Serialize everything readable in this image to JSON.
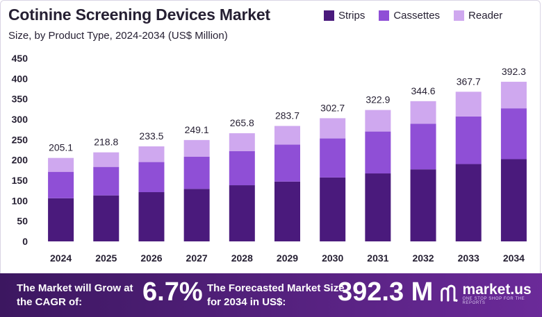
{
  "chart_data": {
    "type": "bar",
    "stacked": true,
    "title": "Cotinine Screening Devices Market",
    "subtitle": "Size, by Product Type, 2024-2034 (US$ Million)",
    "categories": [
      "2024",
      "2025",
      "2026",
      "2027",
      "2028",
      "2029",
      "2030",
      "2031",
      "2032",
      "2033",
      "2034"
    ],
    "series": [
      {
        "name": "Strips",
        "color": "#4a1a7c",
        "values": [
          106.0,
          113.0,
          121.0,
          129.0,
          138.0,
          147.0,
          157.0,
          167.0,
          177.0,
          190.0,
          202.0
        ]
      },
      {
        "name": "Cassettes",
        "color": "#8f4fd6",
        "values": [
          65.0,
          70.0,
          74.0,
          79.0,
          84.0,
          91.0,
          96.0,
          103.0,
          112.0,
          117.0,
          125.0
        ]
      },
      {
        "name": "Reader",
        "color": "#cfa8ef",
        "values": [
          34.1,
          35.8,
          38.5,
          41.1,
          43.8,
          45.7,
          49.7,
          52.9,
          55.6,
          60.7,
          65.3
        ]
      }
    ],
    "totals": [
      "205.1",
      "218.8",
      "233.5",
      "249.1",
      "265.8",
      "283.7",
      "302.7",
      "322.9",
      "344.6",
      "367.7",
      "392.3"
    ],
    "yticks": [
      0,
      50,
      100,
      150,
      200,
      250,
      300,
      350,
      400,
      450
    ],
    "ylim": [
      0,
      450
    ],
    "xlabel": "",
    "ylabel": "",
    "grid": false,
    "legend_position": "top-right"
  },
  "banner": {
    "cagr_label": "The Market will Grow at the CAGR of:",
    "cagr_value": "6.7%",
    "forecast_label": "The Forecasted Market Size for 2034 in US$:",
    "forecast_value": "392.3 M",
    "brand": "market.us",
    "brand_tagline": "ONE STOP SHOP FOR THE REPORTS"
  },
  "colors": {
    "banner_start": "#3c1760",
    "banner_end": "#6b2a99",
    "text": "#262033"
  }
}
